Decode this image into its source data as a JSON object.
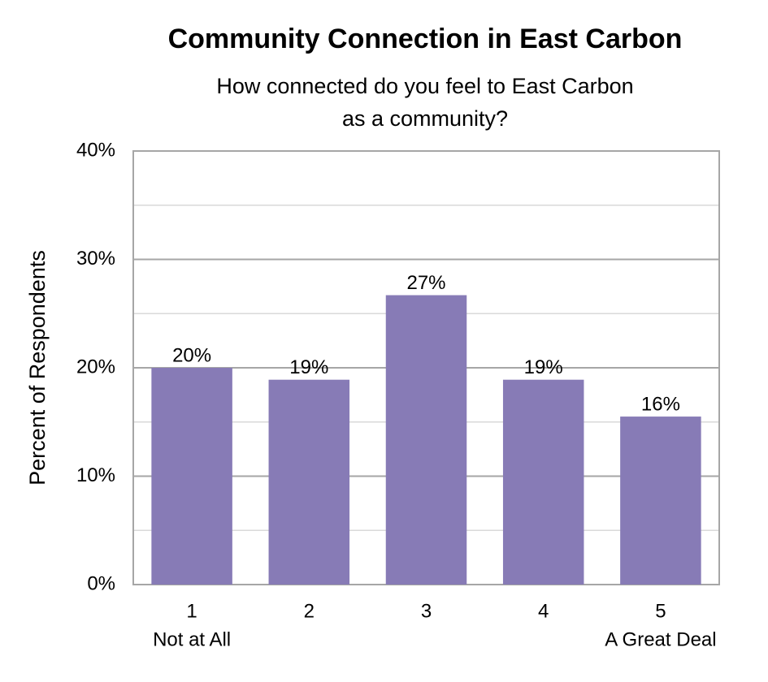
{
  "chart_data": {
    "type": "bar",
    "title": "Community Connection in East Carbon",
    "subtitle": [
      "How connected do you feel to East Carbon",
      "as a community?"
    ],
    "y_label": "Percent of Respondents",
    "categories": [
      "1",
      "2",
      "3",
      "4",
      "5"
    ],
    "category_sublabels": [
      "Not at All",
      null,
      null,
      null,
      "A Great Deal"
    ],
    "values": [
      20,
      18.9,
      26.7,
      18.9,
      15.5
    ],
    "value_labels": [
      "20%",
      "19%",
      "27%",
      "19%",
      "16%"
    ],
    "color": "#877bb6",
    "ylim": [
      0,
      40
    ],
    "yticks": [
      {
        "value": 0,
        "label": "0%"
      },
      {
        "value": 10,
        "label": "10%"
      },
      {
        "value": 20,
        "label": "20%"
      },
      {
        "value": 30,
        "label": "30%"
      },
      {
        "value": 40,
        "label": "40%"
      }
    ],
    "minor_yticks": [
      5,
      15,
      25,
      35
    ],
    "grid": true
  }
}
